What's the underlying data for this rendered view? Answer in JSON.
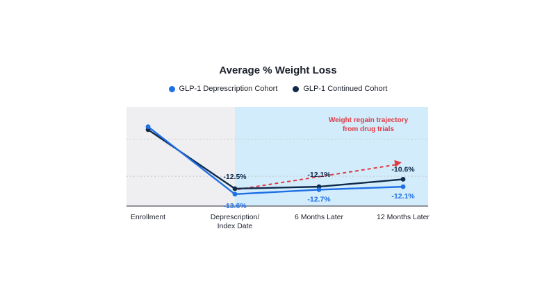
{
  "chart_data": {
    "type": "line",
    "title": "Average % Weight Loss",
    "categories": [
      "Enrollment",
      "Deprescription/\nIndex Date",
      "6 Months Later",
      "12 Months Later"
    ],
    "ylim": [
      -16,
      4
    ],
    "grid": true,
    "legend_position": "top-center",
    "series": [
      {
        "name": "GLP-1 Deprescription Cohort",
        "color": "#1f6fe5",
        "values": [
          0,
          -13.6,
          -12.7,
          -12.1
        ],
        "labels": [
          "",
          "-13.6%",
          "-12.7%",
          "-12.1%"
        ]
      },
      {
        "name": "GLP-1 Continued Cohort",
        "color": "#0f2a4a",
        "values": [
          -0.6,
          -12.5,
          -12.1,
          -10.6
        ],
        "labels": [
          "",
          "-12.5%",
          "-12.1%",
          "-10.6%"
        ]
      }
    ],
    "shaded_region": {
      "from_category": 1,
      "to_category": 3,
      "color": "#d2ecfb"
    },
    "pre_region_color": "#efeff1",
    "annotation": {
      "text_lines": [
        "Weight regain trajectory",
        "from drug trials"
      ],
      "color": "#e03a45",
      "from": {
        "category": 1,
        "value": -12.5
      },
      "to": {
        "category": 3,
        "value": -7.2
      }
    }
  }
}
